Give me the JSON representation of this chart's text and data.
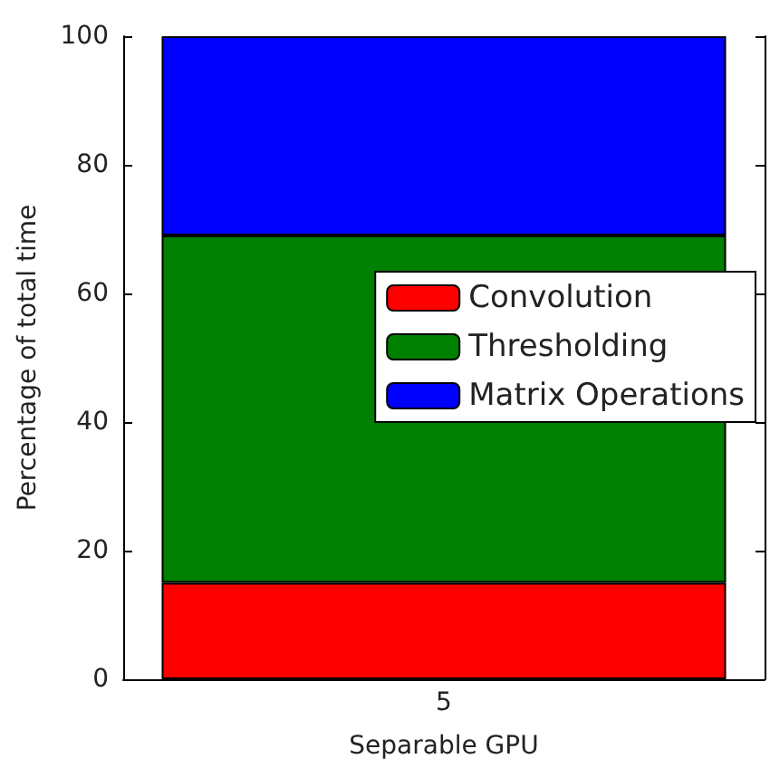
{
  "chart_data": {
    "type": "bar",
    "stacked": true,
    "xlabel": "Separable GPU",
    "ylabel": "Percentage of total time",
    "categories": [
      "5"
    ],
    "series": [
      {
        "name": "Convolution",
        "color": "#ff0000",
        "values": [
          15
        ]
      },
      {
        "name": "Thresholding",
        "color": "#008000",
        "values": [
          54
        ]
      },
      {
        "name": "Matrix Operations",
        "color": "#0000ff",
        "values": [
          31
        ]
      }
    ],
    "ylim": [
      0,
      100
    ],
    "yticks": [
      0,
      20,
      40,
      60,
      80,
      100
    ],
    "legend": "right"
  }
}
